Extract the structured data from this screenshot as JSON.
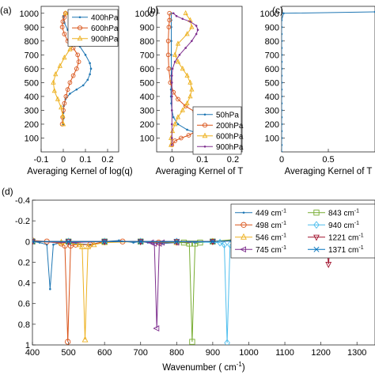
{
  "chart_data": [
    {
      "panel": "(a)",
      "type": "line",
      "xlabel": "Averaging Kernel of log(q)",
      "ylabel": "",
      "xlim": [
        -0.1,
        0.25
      ],
      "ylim": [
        1050,
        0
      ],
      "xticks": [
        "-0.1",
        "0",
        "0.1",
        "0.2"
      ],
      "yticks": [
        "100",
        "200",
        "300",
        "400",
        "500",
        "600",
        "700",
        "800",
        "900",
        "1000"
      ],
      "legend_position": "top-right",
      "series": [
        {
          "name": "400hPa",
          "color": "#1f77b4",
          "marker": "dot",
          "x": [
            0,
            0,
            0,
            0.002,
            0.01,
            0.03,
            0.06,
            0.09,
            0.11,
            0.12,
            0.125,
            0.12,
            0.1,
            0.075,
            0.045,
            0.02,
            0.005,
            0
          ],
          "y": [
            200,
            240,
            280,
            330,
            380,
            420,
            450,
            480,
            520,
            560,
            600,
            640,
            700,
            760,
            820,
            880,
            930,
            980
          ]
        },
        {
          "name": "600hPa",
          "color": "#d95319",
          "marker": "circle",
          "x": [
            -0.005,
            -0.003,
            0,
            0.005,
            0.012,
            0.02,
            0.03,
            0.045,
            0.06,
            0.07,
            0.065,
            0.045,
            0.02,
            0.005,
            -0.005,
            -0.002,
            0.005,
            0.01
          ],
          "y": [
            200,
            250,
            300,
            350,
            400,
            450,
            500,
            550,
            600,
            650,
            700,
            750,
            800,
            850,
            900,
            940,
            970,
            1000
          ]
        },
        {
          "name": "900hPa",
          "color": "#edb120",
          "marker": "triangle",
          "x": [
            0,
            -0.002,
            -0.01,
            -0.025,
            -0.04,
            -0.045,
            -0.035,
            -0.015,
            0.005,
            0.03,
            0.06,
            0.085,
            0.1,
            0.105,
            0.09,
            0.06,
            0.03,
            0.01
          ],
          "y": [
            200,
            260,
            320,
            380,
            440,
            500,
            560,
            620,
            680,
            740,
            790,
            840,
            880,
            910,
            940,
            970,
            990,
            1000
          ]
        }
      ]
    },
    {
      "panel": "(b)",
      "type": "line",
      "xlabel": "Averaging Kernel of T",
      "ylabel": "",
      "xlim": [
        -0.05,
        0.23
      ],
      "ylim": [
        1050,
        0
      ],
      "xticks": [
        "0",
        "0.1",
        "0.2"
      ],
      "yticks": [
        "100",
        "200",
        "300",
        "400",
        "500",
        "600",
        "700",
        "800",
        "900",
        "1000"
      ],
      "legend_position": "bottom-right",
      "series": [
        {
          "name": "50hPa",
          "color": "#1f77b4",
          "marker": "dot",
          "x": [
            0.2,
            0.185,
            0.14,
            0.09,
            0.05,
            0.02,
            0.005,
            0,
            -0.002,
            -0.003,
            -0.003,
            -0.002,
            -0.002,
            -0.002,
            -0.002,
            -0.002,
            -0.002,
            -0.002,
            -0.002
          ],
          "y": [
            50,
            70,
            100,
            130,
            160,
            200,
            250,
            300,
            350,
            400,
            450,
            500,
            550,
            600,
            700,
            800,
            900,
            950,
            1000
          ]
        },
        {
          "name": "200hPa",
          "color": "#d95319",
          "marker": "circle",
          "x": [
            0,
            0.01,
            0.03,
            0.055,
            0.08,
            0.1,
            0.11,
            0.1,
            0.075,
            0.045,
            0.02,
            0.005,
            -0.005,
            -0.01,
            -0.012,
            -0.012,
            -0.01,
            -0.008,
            -0.008
          ],
          "y": [
            50,
            80,
            100,
            120,
            150,
            180,
            210,
            250,
            290,
            330,
            380,
            430,
            500,
            600,
            700,
            800,
            900,
            950,
            1000
          ]
        },
        {
          "name": "600hPa",
          "color": "#edb120",
          "marker": "triangle",
          "x": [
            -0.003,
            -0.003,
            0.002,
            0.01,
            0.02,
            0.035,
            0.05,
            0.06,
            0.065,
            0.06,
            0.05,
            0.035,
            0.02,
            0.01,
            0.02,
            0.05,
            0.065,
            0.06,
            0.045
          ],
          "y": [
            50,
            100,
            150,
            200,
            250,
            300,
            350,
            400,
            450,
            500,
            550,
            600,
            650,
            700,
            780,
            850,
            900,
            950,
            1000
          ]
        },
        {
          "name": "900hPa",
          "color": "#7e2f8e",
          "marker": "dot",
          "x": [
            0,
            0,
            0,
            0,
            0,
            0,
            0,
            0.002,
            0.01,
            0.025,
            0.045,
            0.065,
            0.08,
            0.085,
            0.08,
            0.06,
            0.035,
            0.015,
            0.005
          ],
          "y": [
            50,
            100,
            200,
            300,
            400,
            500,
            550,
            600,
            650,
            700,
            750,
            800,
            850,
            880,
            910,
            940,
            960,
            980,
            1000
          ]
        }
      ]
    },
    {
      "panel": "(c)",
      "type": "line",
      "xlabel": "Averaging Kernel of T",
      "ylabel": "",
      "xlim": [
        0,
        1
      ],
      "ylim": [
        1050,
        0
      ],
      "xticks": [
        "0",
        "0.5"
      ],
      "yticks": [
        "100",
        "200",
        "300",
        "400",
        "500",
        "600",
        "700",
        "800",
        "900",
        "1000"
      ],
      "series": [
        {
          "name": "",
          "color": "#1f77b4",
          "marker": "dot",
          "x": [
            0,
            0,
            0,
            0,
            0,
            0,
            0,
            0,
            0,
            0,
            0,
            0,
            0,
            0,
            0,
            0,
            0,
            0,
            0,
            0,
            0.02,
            1.0
          ],
          "y": [
            0,
            50,
            100,
            150,
            200,
            250,
            300,
            350,
            400,
            450,
            500,
            550,
            600,
            650,
            700,
            750,
            800,
            850,
            900,
            950,
            1000,
            1010
          ]
        }
      ]
    },
    {
      "panel": "(d)",
      "type": "line",
      "xlabel": "Wavenumber ( cm",
      "xlabel_sup": "-1",
      "xlabel_end": ")",
      "ylabel": "",
      "xlim": [
        400,
        1350
      ],
      "ylim": [
        -0.4,
        1.0
      ],
      "xticks": [
        "400",
        "500",
        "600",
        "700",
        "800",
        "900",
        "1000",
        "1100",
        "1200",
        "1300"
      ],
      "yticks": [
        "-0.4",
        "-0.2",
        "0",
        "0.2",
        "0.4",
        "0.6",
        "0.8",
        "1"
      ],
      "legend_position": "top-right",
      "series": [
        {
          "name": "449 cm",
          "sup": "-1",
          "color": "#1f77b4",
          "marker": "dot",
          "x": [
            400,
            420,
            440,
            449,
            458,
            480,
            520,
            560,
            600,
            640,
            680,
            700,
            720,
            760,
            800,
            850,
            900,
            950,
            990,
            1050,
            1100,
            1150,
            1190,
            1210,
            1220,
            1230,
            1250,
            1300,
            1330,
            1350
          ],
          "y": [
            0.0,
            0.01,
            0.03,
            0.46,
            0.03,
            0.01,
            0.02,
            0.03,
            0.0,
            -0.01,
            0.01,
            0.0,
            0.01,
            0.02,
            0.01,
            0.01,
            0.0,
            -0.01,
            -0.03,
            -0.06,
            -0.1,
            -0.15,
            -0.2,
            -0.22,
            -0.15,
            -0.2,
            -0.05,
            -0.02,
            0.0,
            0.0
          ]
        },
        {
          "name": "498 cm",
          "sup": "-1",
          "color": "#d95319",
          "marker": "circle",
          "x": [
            400,
            440,
            480,
            490,
            498,
            506,
            520,
            560,
            600,
            650,
            700,
            750,
            800,
            900,
            990,
            1100,
            1190,
            1210,
            1220,
            1230,
            1260,
            1330,
            1350
          ],
          "y": [
            -0.01,
            0.0,
            0.02,
            0.04,
            0.97,
            0.04,
            0.03,
            0.03,
            0.0,
            0.0,
            0.0,
            0.01,
            0.01,
            0.0,
            -0.02,
            -0.08,
            -0.18,
            -0.21,
            -0.14,
            -0.19,
            -0.05,
            0.0,
            0.0
          ]
        },
        {
          "name": "546 cm",
          "sup": "-1",
          "color": "#edb120",
          "marker": "triangle",
          "x": [
            400,
            480,
            530,
            538,
            546,
            554,
            570,
            600,
            700,
            800,
            900,
            990,
            1100,
            1190,
            1210,
            1220,
            1230,
            1260,
            1350
          ],
          "y": [
            0.0,
            0.01,
            0.03,
            0.05,
            0.95,
            0.05,
            0.03,
            0.01,
            0.0,
            0.01,
            0.0,
            -0.02,
            -0.07,
            -0.17,
            -0.2,
            -0.13,
            -0.18,
            -0.04,
            0.0
          ]
        },
        {
          "name": "745 cm",
          "sup": "-1",
          "color": "#7e2f8e",
          "marker": "triangle-left",
          "x": [
            400,
            500,
            600,
            700,
            730,
            738,
            745,
            752,
            760,
            800,
            900,
            990,
            1100,
            1190,
            1210,
            1220,
            1230,
            1260,
            1350
          ],
          "y": [
            0.0,
            0.01,
            0.0,
            0.0,
            0.01,
            0.02,
            0.84,
            0.02,
            0.01,
            0.01,
            0.0,
            -0.02,
            -0.06,
            -0.14,
            -0.17,
            -0.12,
            -0.16,
            -0.04,
            0.0
          ]
        },
        {
          "name": "843 cm",
          "sup": "-1",
          "color": "#77ac30",
          "marker": "square",
          "x": [
            400,
            500,
            600,
            700,
            820,
            835,
            843,
            851,
            865,
            900,
            990,
            1100,
            1190,
            1210,
            1220,
            1230,
            1260,
            1350
          ],
          "y": [
            0.0,
            0.0,
            0.0,
            0.0,
            0.01,
            0.02,
            0.97,
            0.02,
            0.01,
            0.0,
            -0.03,
            -0.09,
            -0.19,
            -0.23,
            -0.16,
            -0.21,
            -0.05,
            0.0
          ]
        },
        {
          "name": "940 cm",
          "sup": "-1",
          "color": "#4dbeee",
          "marker": "diamond",
          "x": [
            400,
            500,
            600,
            700,
            800,
            920,
            932,
            940,
            948,
            960,
            990,
            1100,
            1190,
            1210,
            1220,
            1230,
            1260,
            1350
          ],
          "y": [
            0.0,
            0.0,
            0.0,
            0.0,
            0.0,
            0.01,
            0.03,
            0.98,
            0.03,
            0.01,
            -0.03,
            -0.12,
            -0.24,
            -0.27,
            -0.19,
            -0.25,
            -0.06,
            0.0
          ]
        },
        {
          "name": "1221 cm",
          "sup": "-1",
          "color": "#a2142f",
          "marker": "triangle-down",
          "x": [
            400,
            500,
            600,
            700,
            800,
            900,
            990,
            1100,
            1180,
            1205,
            1214,
            1221,
            1228,
            1240,
            1270,
            1350
          ],
          "y": [
            0.0,
            0.0,
            0.0,
            0.0,
            0.0,
            0.0,
            -0.01,
            -0.04,
            -0.1,
            -0.14,
            -0.05,
            0.22,
            -0.05,
            -0.1,
            -0.03,
            0.0
          ]
        },
        {
          "name": "1371 cm",
          "sup": "-1",
          "color": "#0072bd",
          "marker": "x",
          "x": [
            400,
            500,
            600,
            700,
            800,
            900,
            990,
            1100,
            1190,
            1210,
            1220,
            1230,
            1270,
            1320,
            1340,
            1350
          ],
          "y": [
            0.0,
            0.0,
            0.0,
            0.0,
            0.0,
            0.0,
            -0.01,
            -0.03,
            -0.09,
            -0.1,
            -0.06,
            -0.08,
            -0.02,
            0.01,
            0.02,
            0.02
          ]
        }
      ]
    }
  ]
}
